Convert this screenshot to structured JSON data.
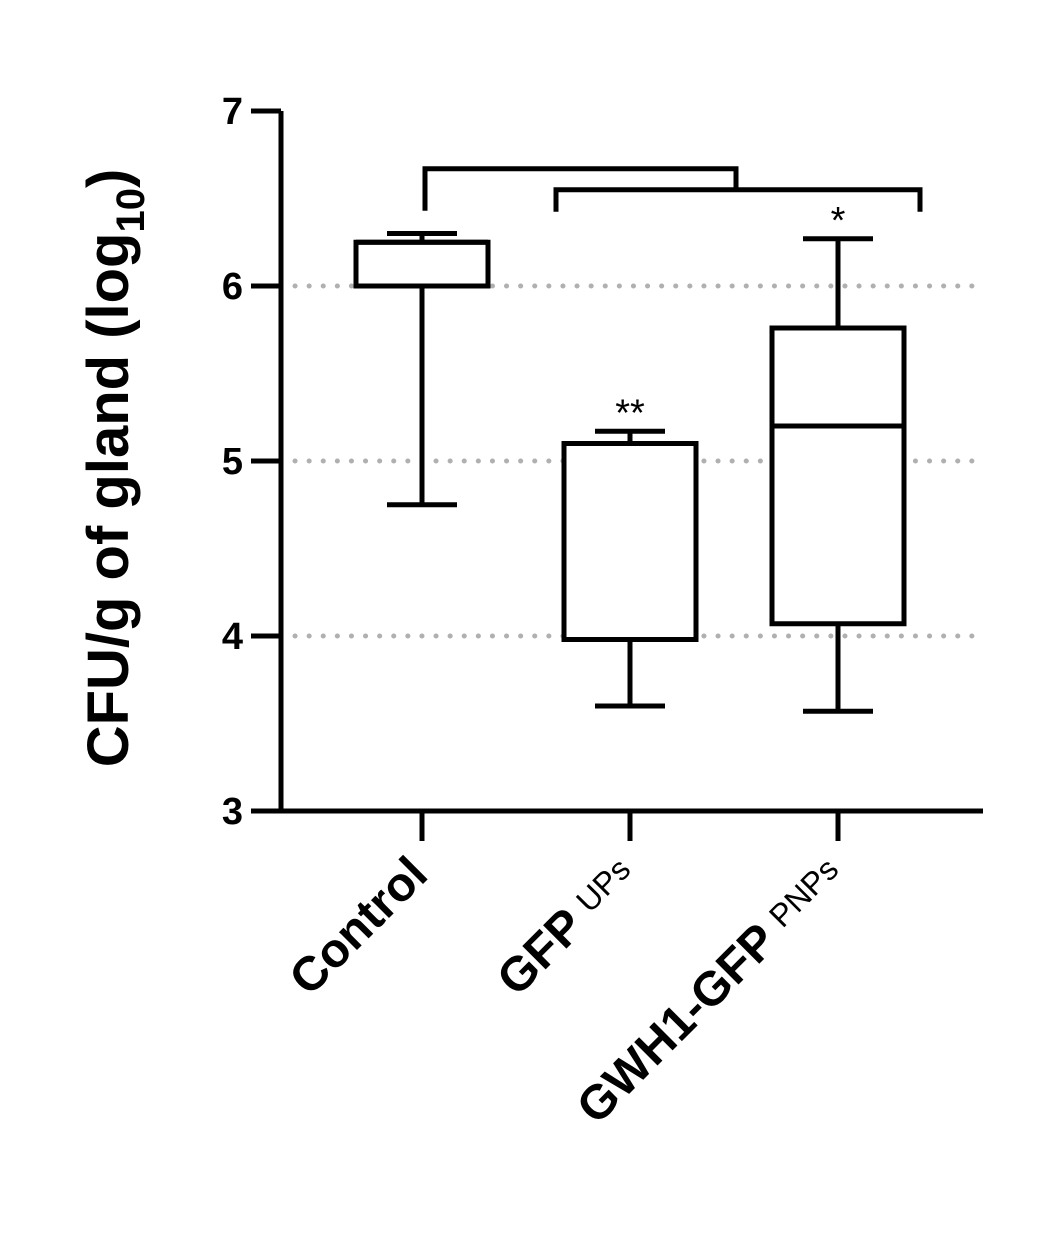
{
  "chart_data": {
    "type": "box",
    "ylabel": "CFU/g of gland (log",
    "ylabel_subscript": "10",
    "ylabel_close": ")",
    "ylim": [
      3,
      7
    ],
    "yticks": [
      3,
      4,
      5,
      6,
      7
    ],
    "gridlines_y": [
      4,
      5,
      6
    ],
    "gridline_color": "#b0b0b0",
    "categories": [
      {
        "name": "Control",
        "sub": ""
      },
      {
        "name": "GFP",
        "sub": "UPs"
      },
      {
        "name": "GWH1-GFP",
        "sub": "PNPs"
      }
    ],
    "boxes": [
      {
        "min": 4.75,
        "q1": 6.0,
        "median": 6.25,
        "q3": 6.25,
        "max": 6.3,
        "annotation": ""
      },
      {
        "min": 3.6,
        "q1": 3.98,
        "median": 5.1,
        "q3": 5.1,
        "max": 5.17,
        "annotation": "**"
      },
      {
        "min": 3.57,
        "q1": 4.07,
        "median": 5.2,
        "q3": 5.76,
        "max": 6.27,
        "annotation": "*"
      }
    ],
    "comparison_brackets": [
      {
        "from": [
          0
        ],
        "to": [
          1,
          2
        ],
        "level": 6.67
      },
      {
        "from": [
          1
        ],
        "to": [
          2
        ],
        "level": 6.55
      }
    ],
    "grid": true
  }
}
